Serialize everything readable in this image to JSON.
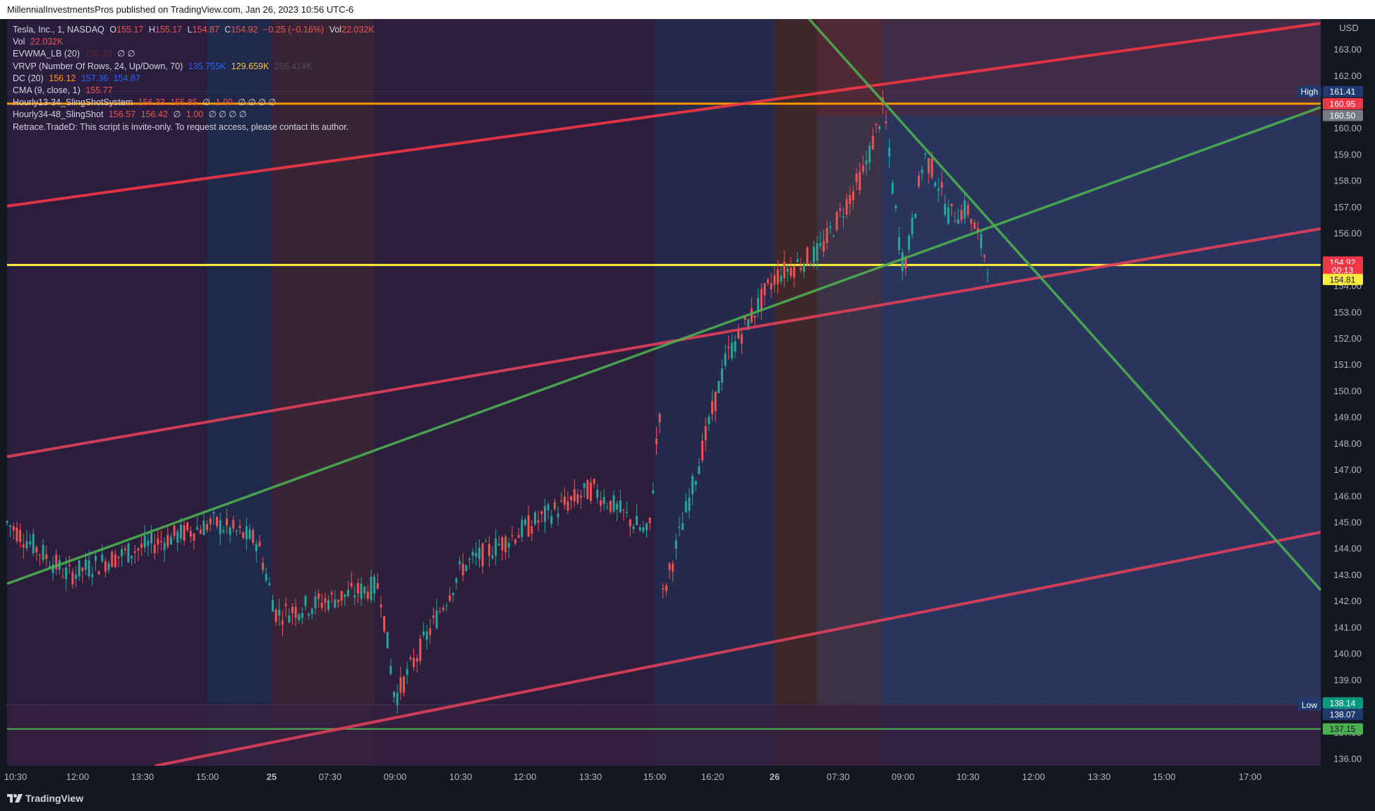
{
  "header": {
    "publisher_line": "MillennialInvestmentsPros published on TradingView.com, Jan 26, 2023 10:56 UTC-6"
  },
  "legend": {
    "symbol_line": {
      "name": "Tesla, Inc., 1, NASDAQ",
      "o_label": "O",
      "o_value": "155.17",
      "h_label": "H",
      "h_value": "155.17",
      "l_label": "L",
      "l_value": "154.87",
      "c_label": "C",
      "c_value": "154.92",
      "change": "−0.25 (−0.16%)",
      "vol_label": "Vol",
      "vol_value": "22.032K"
    },
    "vol_line": {
      "label": "Vol",
      "value": "22.032K"
    },
    "evwma": {
      "label": "EVWMA_LB (20)",
      "value": "155.26",
      "flags": "∅ ∅"
    },
    "vrvp": {
      "label": "VRVP (Number Of Rows, 24, Up/Down, 70)",
      "v1": "135.755K",
      "v2": "129.659K",
      "v3": "265.414K"
    },
    "dc": {
      "label": "DC (20)",
      "v1": "156.12",
      "v2": "157.36",
      "v3": "154.87"
    },
    "cma": {
      "label": "CMA (9, close, 1)",
      "value": "155.77"
    },
    "sling1": {
      "label": "Hourly13-34_SlingShotSystem",
      "v1": "156.33",
      "v2": "155.85",
      "flags1": "∅",
      "v3": "1.00",
      "flags2": "∅ ∅ ∅ ∅"
    },
    "sling2": {
      "label": "Hourly34-48_SlingShot",
      "v1": "156.57",
      "v2": "156.42",
      "flags1": "∅",
      "v3": "1.00",
      "flags2": "∅ ∅ ∅ ∅"
    },
    "retrace": {
      "text": "Retrace.TradeD: This script is invite-only. To request access, please contact its author."
    }
  },
  "price_axis": {
    "currency": "USD",
    "high_tag": "High",
    "low_tag": "Low",
    "labels": [
      {
        "text": "161.41",
        "value": 161.41,
        "bg": "#1e3a6e",
        "fg": "#ffffff"
      },
      {
        "text": "160.95",
        "value": 160.95,
        "bg": "#f23645",
        "fg": "#ffffff"
      },
      {
        "text": "160.50",
        "value": 160.5,
        "bg": "#787b86",
        "fg": "#ffffff"
      },
      {
        "text": "154.92",
        "value": 154.92,
        "bg": "#f23645",
        "fg": "#ffffff"
      },
      {
        "text": "00:13",
        "value": 154.62,
        "bg": "#f23645",
        "fg": "#ffffff"
      },
      {
        "text": "154.81",
        "value": 154.26,
        "bg": "#ffeb3b",
        "fg": "#131722"
      },
      {
        "text": "138.14",
        "value": 138.14,
        "bg": "#089981",
        "fg": "#ffffff"
      },
      {
        "text": "138.07",
        "value": 137.7,
        "bg": "#1e3a6e",
        "fg": "#ffffff"
      },
      {
        "text": "137.15",
        "value": 137.15,
        "bg": "#4caf50",
        "fg": "#131722"
      }
    ]
  },
  "time_axis": {
    "ticks": [
      "10:30",
      "12:00",
      "13:30",
      "15:00",
      "25",
      "07:30",
      "09:00",
      "10:30",
      "12:00",
      "13:30",
      "15:00",
      "16:20",
      "26",
      "07:30",
      "09:00",
      "10:30",
      "12:00",
      "13:30",
      "15:00",
      "17:00"
    ]
  },
  "footer": {
    "brand": "TradingView"
  },
  "colors": {
    "background": "#131722",
    "up": "#26a69a",
    "down": "#ef5350",
    "red_channel": "#f23645",
    "green_trend": "#4caf50",
    "orange_level": "#ff9800",
    "yellow_level": "#ffeb3b"
  },
  "chart_data": {
    "type": "line",
    "symbol": "Tesla, Inc., 1, NASDAQ",
    "ylabel": "USD",
    "ylim": [
      135.5,
      163.5
    ],
    "y_ticks": [
      136,
      137,
      138,
      139,
      140,
      141,
      142,
      143,
      144,
      145,
      146,
      147,
      148,
      149,
      150,
      151,
      152,
      153,
      154,
      155,
      156,
      157,
      158,
      159,
      160,
      161,
      162,
      163
    ],
    "x_tick_labels": [
      "10:30",
      "12:00",
      "13:30",
      "15:00",
      "25",
      "07:30",
      "09:00",
      "10:30",
      "12:00",
      "13:30",
      "15:00",
      "16:20",
      "26",
      "07:30",
      "09:00",
      "10:30",
      "12:00",
      "13:30",
      "15:00",
      "17:00"
    ],
    "series": [
      {
        "name": "Tesla, Inc.",
        "x": [
          "10:30",
          "12:00",
          "13:30",
          "15:00",
          "16:00",
          "07:30",
          "08:30",
          "09:00",
          "10:30",
          "12:00",
          "13:30",
          "14:30",
          "15:00",
          "15:10",
          "16:20",
          "16:50",
          "26 04:00",
          "07:30",
          "08:00",
          "08:25",
          "08:40",
          "08:50",
          "09:00",
          "09:30",
          "10:00",
          "10:15",
          "10:30",
          "10:45"
        ],
        "values": [
          145.0,
          143.0,
          143.9,
          145.0,
          144.3,
          141.5,
          142.6,
          138.3,
          143.3,
          145.2,
          146.3,
          144.5,
          149.5,
          142.0,
          147.2,
          151.3,
          154.4,
          155.3,
          158.4,
          160.9,
          158.5,
          155.0,
          155.0,
          159.0,
          158.1,
          156.7,
          156.9,
          154.92
        ]
      }
    ],
    "horizontal_levels": [
      {
        "value": 160.95,
        "color": "#ff9800"
      },
      {
        "value": 154.81,
        "color": "#ffeb3b"
      },
      {
        "value": 137.15,
        "color": "#4caf50"
      },
      {
        "value": 161.41,
        "label": "High"
      },
      {
        "value": 138.07,
        "label": "Low"
      }
    ],
    "grid": false
  }
}
